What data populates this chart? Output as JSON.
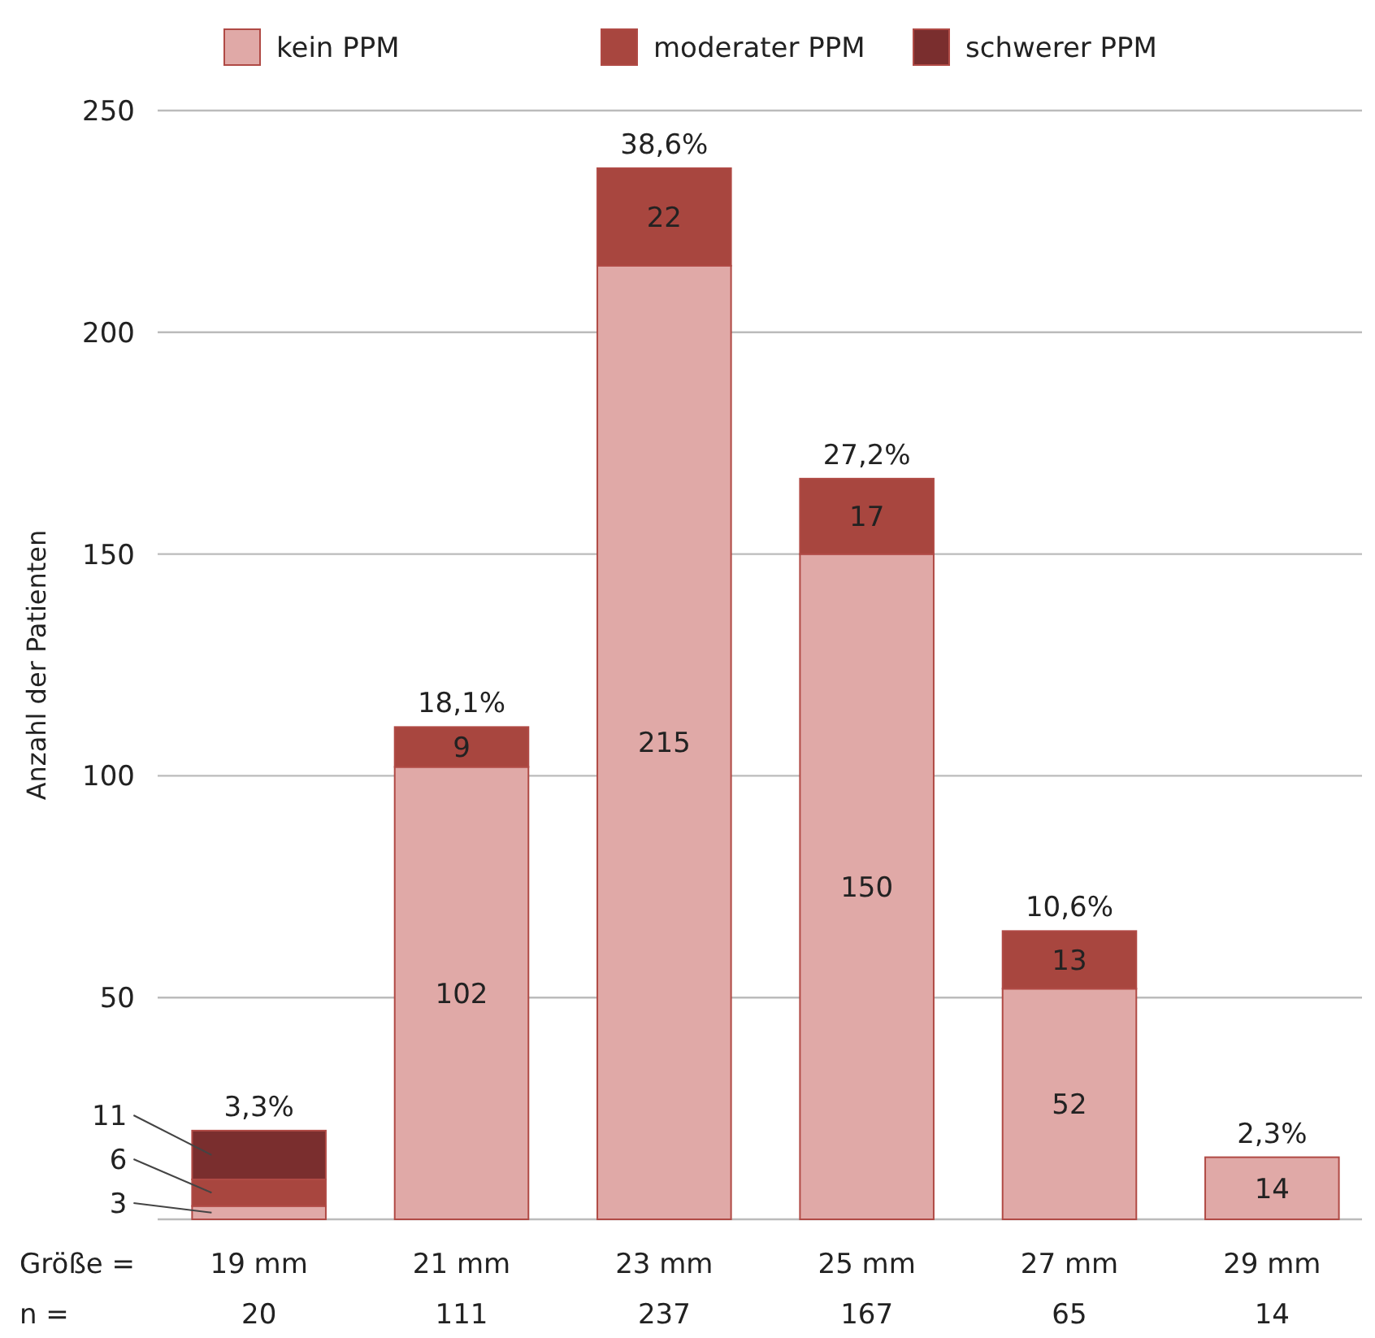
{
  "chart_data": {
    "type": "bar",
    "stacked": true,
    "ylabel": "Anzahl der Patienten",
    "xlabel": "Größe =",
    "categories": [
      "19 mm",
      "21 mm",
      "23 mm",
      "25 mm",
      "27 mm",
      "29 mm"
    ],
    "series": [
      {
        "name": "kein PPM",
        "color": "#e0a9a7",
        "values": [
          3,
          102,
          215,
          150,
          52,
          14
        ]
      },
      {
        "name": "moderater PPM",
        "color": "#a8463f",
        "values": [
          6,
          9,
          22,
          17,
          13,
          null
        ]
      },
      {
        "name": "schwerer PPM",
        "color": "#7a2e2e",
        "values": [
          11,
          null,
          null,
          null,
          null,
          null
        ]
      }
    ],
    "totals": [
      "20",
      "111",
      "237",
      "167",
      "65",
      "14"
    ],
    "annotations": [
      "n =",
      {
        "text": "3,3%",
        "y": 20
      },
      {
        "text": "18,1%",
        "y": 111
      },
      {
        "text": "38,6%",
        "y": 237
      },
      {
        "text": "27,2%",
        "y": 167
      },
      {
        "text": "10,6%",
        "y": 65
      },
      {
        "text": "2,3%",
        "y": 14
      }
    ],
    "ylim": [
      0,
      250
    ],
    "yticks": [
      50,
      100,
      150,
      200,
      250
    ],
    "grid": "y",
    "legend": "top",
    "data_labels": true
  }
}
